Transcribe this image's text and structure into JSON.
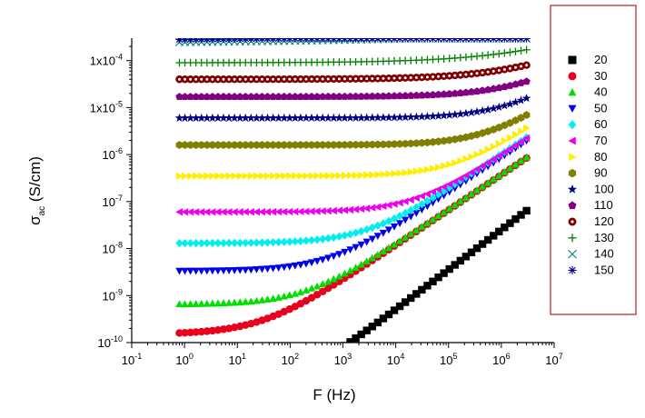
{
  "chart_data": {
    "type": "scatter",
    "xlabel_main": "F",
    "xlabel_unit": "(Hz)",
    "ylabel_sym": "σ",
    "ylabel_sub": "ac",
    "ylabel_unit": "(S/cm)",
    "x_scale": "log",
    "y_scale": "log",
    "xlim": [
      0.1,
      10000000
    ],
    "ylim": [
      1e-10,
      0.0003
    ],
    "legend_placement": "right",
    "grid": false,
    "x_ticks": [
      {
        "base": "10",
        "exp": "-1"
      },
      {
        "base": "10",
        "exp": "0"
      },
      {
        "base": "10",
        "exp": "1"
      },
      {
        "base": "10",
        "exp": "2"
      },
      {
        "base": "10",
        "exp": "3"
      },
      {
        "base": "10",
        "exp": "4"
      },
      {
        "base": "10",
        "exp": "5"
      },
      {
        "base": "10",
        "exp": "6"
      },
      {
        "base": "10",
        "exp": "7"
      }
    ],
    "y_ticks": [
      {
        "base": "10",
        "exp": "-10"
      },
      {
        "base": "10",
        "exp": "-9"
      },
      {
        "base": "10",
        "exp": "-8"
      },
      {
        "base": "10",
        "exp": "-7"
      },
      {
        "base": "10",
        "exp": "-6"
      },
      {
        "base": "1x10",
        "exp": "-5"
      },
      {
        "base": "1x10",
        "exp": "-4"
      }
    ],
    "freq_range": [
      0.8,
      3000000
    ],
    "series": [
      {
        "name": "20",
        "color": "#000000",
        "marker": "square",
        "sigma_dc": 1e-11,
        "fc": 100,
        "n": 0.85
      },
      {
        "name": "30",
        "color": "#e8001c",
        "marker": "circle",
        "sigma_dc": 1.5e-10,
        "fc": 30,
        "n": 0.75
      },
      {
        "name": "40",
        "color": "#00e000",
        "marker": "triangle-up",
        "sigma_dc": 6.5e-10,
        "fc": 200,
        "n": 0.75
      },
      {
        "name": "50",
        "color": "#0000ee",
        "marker": "triangle-down",
        "sigma_dc": 3.3e-09,
        "fc": 600,
        "n": 0.75
      },
      {
        "name": "60",
        "color": "#00eeee",
        "marker": "diamond",
        "sigma_dc": 1.3e-08,
        "fc": 3000,
        "n": 0.75
      },
      {
        "name": "70",
        "color": "#ee00ee",
        "marker": "triangle-left",
        "sigma_dc": 6e-08,
        "fc": 25000,
        "n": 0.75
      },
      {
        "name": "80",
        "color": "#ffee00",
        "marker": "triangle-right",
        "sigma_dc": 3.5e-07,
        "fc": 150000,
        "n": 0.75
      },
      {
        "name": "90",
        "color": "#808000",
        "marker": "hexagon",
        "sigma_dc": 1.6e-06,
        "fc": 600000,
        "n": 0.75
      },
      {
        "name": "100",
        "color": "#000080",
        "marker": "star",
        "sigma_dc": 6e-06,
        "fc": 1500000,
        "n": 0.7
      },
      {
        "name": "110",
        "color": "#800080",
        "marker": "pentagon",
        "sigma_dc": 1.7e-05,
        "fc": 2500000,
        "n": 0.6
      },
      {
        "name": "120",
        "color": "#800000",
        "marker": "circle-dot",
        "sigma_dc": 4e-05,
        "fc": 3000000,
        "n": 0.5
      },
      {
        "name": "130",
        "color": "#008000",
        "marker": "plus",
        "sigma_dc": 9e-05,
        "fc": 4000000,
        "n": 0.4
      },
      {
        "name": "140",
        "color": "#008080",
        "marker": "cross",
        "sigma_dc": 0.00022,
        "fc": 1000000000.0,
        "n": 0.1
      },
      {
        "name": "150",
        "color": "#000090",
        "marker": "asterisk",
        "sigma_dc": 0.00025,
        "fc": 1000000000.0,
        "n": 0.1
      }
    ]
  }
}
